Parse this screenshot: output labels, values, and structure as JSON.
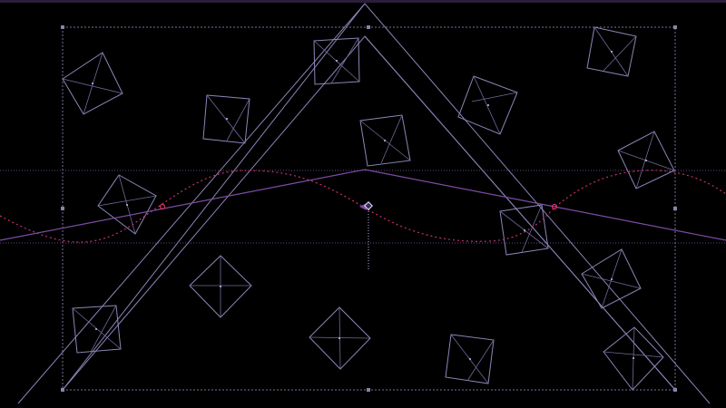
{
  "canvas": {
    "background_color": "#000000",
    "accent_color": "#7d4ca6",
    "wave_color": "#c3306f",
    "guide_color": "#6a5a9a"
  },
  "icons": {
    "pivot": "crosshair-pivot-icon",
    "wave_marker": "circle-marker-icon"
  }
}
